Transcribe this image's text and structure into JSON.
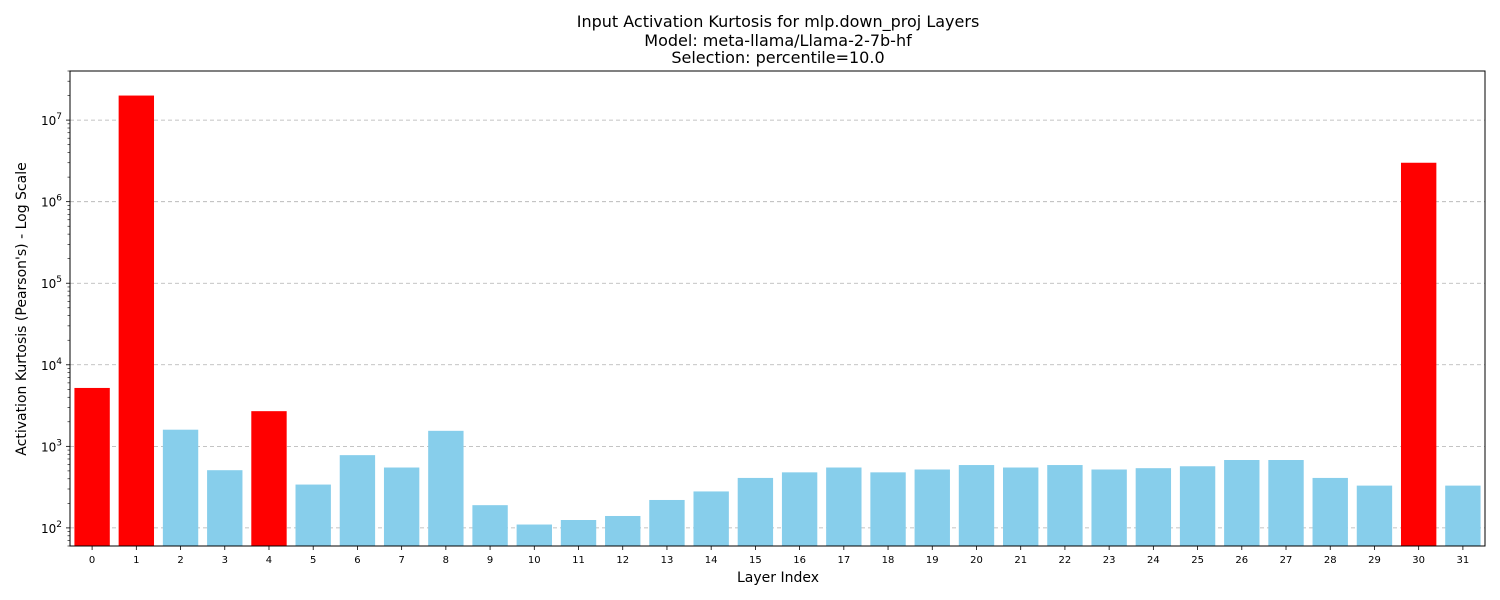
{
  "chart_data": {
    "type": "bar",
    "title_lines": [
      "Input Activation Kurtosis for mlp.down_proj Layers",
      "Model: meta-llama/Llama-2-7b-hf",
      "Selection: percentile=10.0"
    ],
    "xlabel": "Layer Index",
    "ylabel": "Activation Kurtosis (Pearson's) - Log Scale",
    "y_scale": "log",
    "ylim": [
      60,
      40000000
    ],
    "y_tick_exponents": [
      2,
      3,
      4,
      5,
      6,
      7
    ],
    "grid": "horizontal dashed",
    "colors": {
      "normal": "#87CEEB",
      "selected": "#FF0000",
      "grid": "#b0b0b0"
    },
    "categories": [
      "0",
      "1",
      "2",
      "3",
      "4",
      "5",
      "6",
      "7",
      "8",
      "9",
      "10",
      "11",
      "12",
      "13",
      "14",
      "15",
      "16",
      "17",
      "18",
      "19",
      "20",
      "21",
      "22",
      "23",
      "24",
      "25",
      "26",
      "27",
      "28",
      "29",
      "30",
      "31"
    ],
    "values": [
      5200,
      20000000,
      1600,
      510,
      2700,
      340,
      780,
      550,
      1550,
      190,
      110,
      125,
      140,
      220,
      280,
      410,
      480,
      550,
      480,
      520,
      590,
      550,
      590,
      520,
      540,
      570,
      680,
      680,
      410,
      330,
      3000000,
      330
    ],
    "selected": [
      true,
      true,
      false,
      false,
      true,
      false,
      false,
      false,
      false,
      false,
      false,
      false,
      false,
      false,
      false,
      false,
      false,
      false,
      false,
      false,
      false,
      false,
      false,
      false,
      false,
      false,
      false,
      false,
      false,
      false,
      true,
      false
    ]
  }
}
